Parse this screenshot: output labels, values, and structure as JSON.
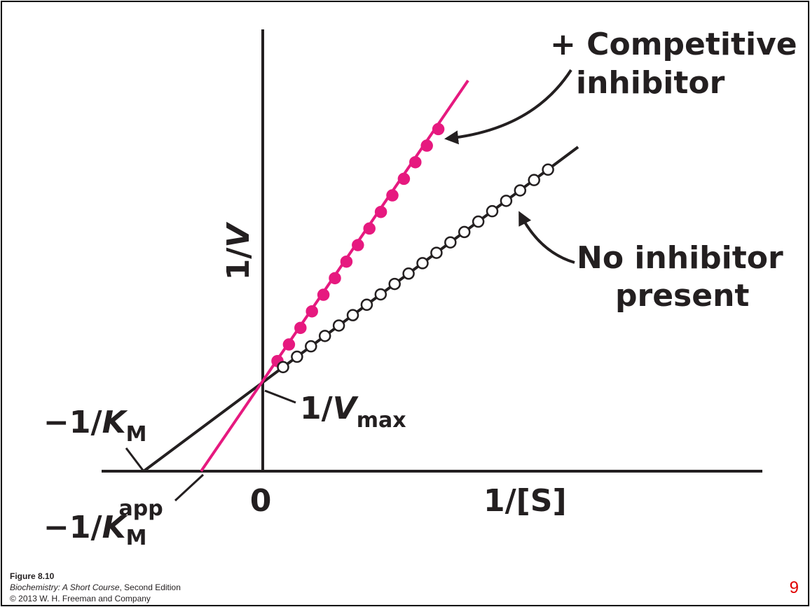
{
  "labels": {
    "competitive": [
      "+ Competitive",
      "inhibitor"
    ],
    "none": [
      "No inhibitor",
      "present"
    ],
    "y_axis": {
      "main": "1/",
      "var": "V"
    },
    "vmax": {
      "main": "1/",
      "var": "V",
      "sub": "max"
    },
    "km": {
      "main": "−1/",
      "var": "K",
      "sub": "M"
    },
    "km_app": {
      "main": "−1/",
      "var": "K",
      "sub": "M",
      "sup": "app"
    },
    "origin": "0",
    "x_axis": "1/[S]"
  },
  "caption": {
    "figure": "Figure 8.10",
    "book": "Biochemistry: A Short Course",
    "edition": ", Second Edition",
    "copyright": "© 2013 W. H. Freeman and Company"
  },
  "page_number": "9"
}
